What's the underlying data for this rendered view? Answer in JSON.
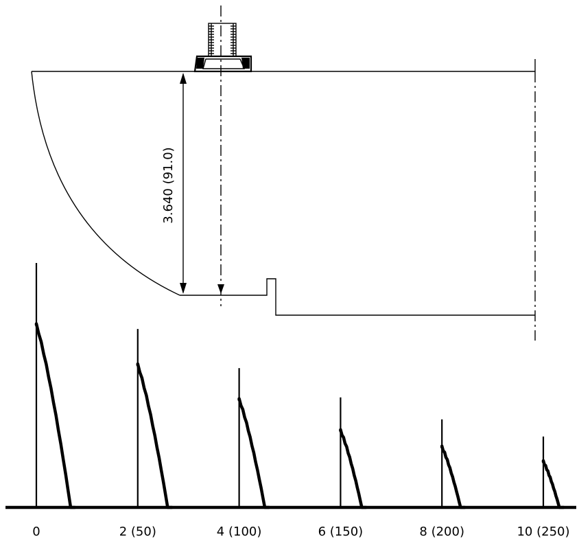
{
  "dimension": {
    "label": "3.640 (91.0)"
  },
  "echo_trace": {
    "tick_labels": [
      "0",
      "2 (50)",
      "4 (100)",
      "6 (150)",
      "8 (200)",
      "10 (250)"
    ],
    "echo_relative_heights": [
      1.0,
      0.78,
      0.59,
      0.42,
      0.33,
      0.25
    ],
    "spike_relative_heights": [
      1.0,
      0.73,
      0.57,
      0.45,
      0.36,
      0.29
    ]
  }
}
